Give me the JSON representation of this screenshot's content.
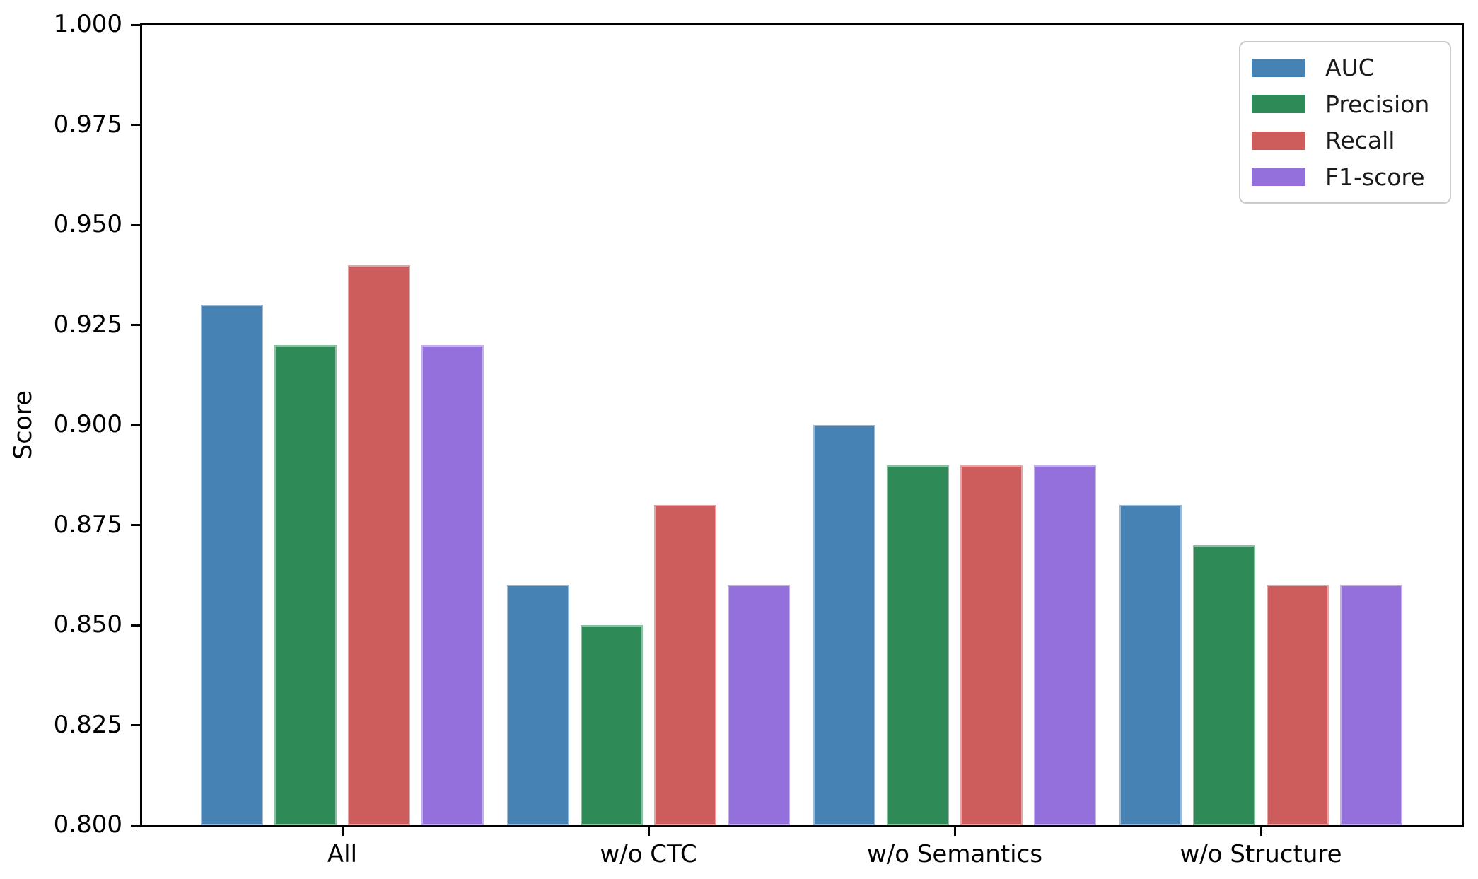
{
  "chart_data": {
    "type": "bar",
    "title": "",
    "xlabel": "",
    "ylabel": "Score",
    "categories": [
      "All",
      "w/o CTC",
      "w/o Semantics",
      "w/o Structure"
    ],
    "series": [
      {
        "name": "AUC",
        "color": "#4682B4",
        "values": [
          0.93,
          0.86,
          0.9,
          0.88
        ]
      },
      {
        "name": "Precision",
        "color": "#2E8B57",
        "values": [
          0.92,
          0.85,
          0.89,
          0.87
        ]
      },
      {
        "name": "Recall",
        "color": "#CD5C5C",
        "values": [
          0.94,
          0.88,
          0.89,
          0.86
        ]
      },
      {
        "name": "F1-score",
        "color": "#9370DB",
        "values": [
          0.92,
          0.86,
          0.89,
          0.86
        ]
      }
    ],
    "ylim": [
      0.8,
      1.0
    ],
    "ytick_step": 0.025,
    "ytick_decimals": 3,
    "grid": false,
    "legend_position": "upper right"
  }
}
